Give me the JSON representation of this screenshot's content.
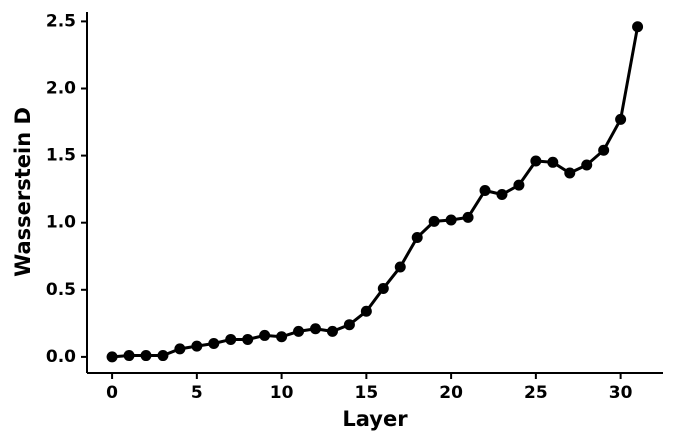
{
  "chart_data": {
    "type": "line",
    "xlabel": "Layer",
    "ylabel": "Wasserstein D",
    "x": [
      0,
      1,
      2,
      3,
      4,
      5,
      6,
      7,
      8,
      9,
      10,
      11,
      12,
      13,
      14,
      15,
      16,
      17,
      18,
      19,
      20,
      21,
      22,
      23,
      24,
      25,
      26,
      27,
      28,
      29,
      30,
      31
    ],
    "series": [
      {
        "color": "#000000",
        "values": [
          0.0,
          0.01,
          0.01,
          0.01,
          0.06,
          0.08,
          0.1,
          0.13,
          0.13,
          0.16,
          0.15,
          0.19,
          0.21,
          0.19,
          0.24,
          0.34,
          0.51,
          0.67,
          0.89,
          1.01,
          1.02,
          1.04,
          1.24,
          1.21,
          1.28,
          1.46,
          1.45,
          1.37,
          1.43,
          1.54,
          1.77,
          2.46
        ]
      }
    ],
    "xlim": [
      -1.48,
      32.5
    ],
    "ylim": [
      -0.12,
      2.57
    ],
    "xticks": [
      0,
      5,
      10,
      15,
      20,
      25,
      30
    ],
    "yticks": [
      {
        "value": 0,
        "label": "0.0"
      },
      0.5,
      {
        "value": 1,
        "label": "1.0"
      },
      1.5,
      {
        "value": 2,
        "label": "2.0"
      },
      2.5
    ]
  }
}
